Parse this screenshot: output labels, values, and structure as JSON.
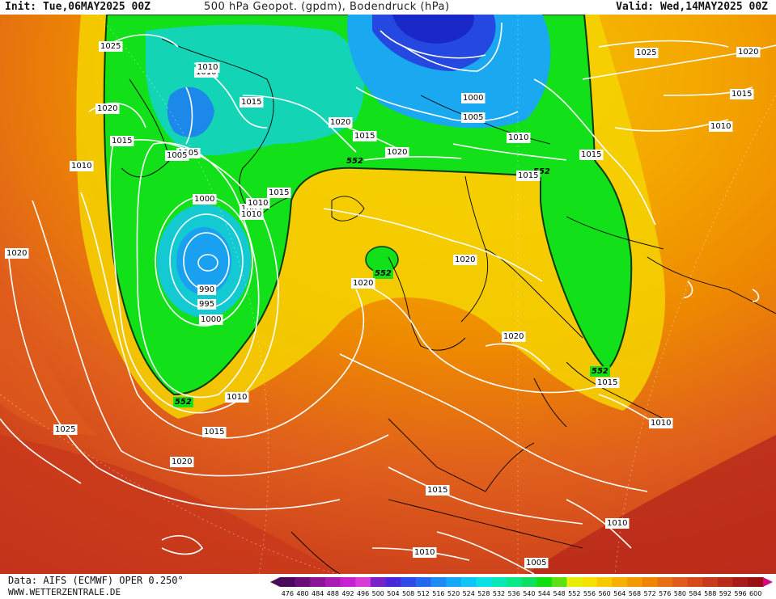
{
  "header": {
    "init": "Init: Tue,06MAY2025 00Z",
    "title": "500 hPa Geopot. (gpdm), Bodendruck (hPa)",
    "valid": "Valid: Wed,14MAY2025 00Z"
  },
  "footer": {
    "source": "Data: AIFS (ECMWF) OPER 0.250°",
    "website": "WWW.WETTERZENTRALE.DE"
  },
  "colorbar": {
    "values": [
      "476",
      "480",
      "484",
      "488",
      "492",
      "496",
      "500",
      "504",
      "508",
      "512",
      "516",
      "520",
      "524",
      "528",
      "532",
      "536",
      "540",
      "544",
      "548",
      "552",
      "556",
      "560",
      "564",
      "568",
      "572",
      "576",
      "580",
      "584",
      "588",
      "592",
      "596",
      "600"
    ],
    "colors": [
      "#4b0a5a",
      "#6a0f78",
      "#8a1596",
      "#a81cb4",
      "#c622cf",
      "#d83cd8",
      "#7a22c8",
      "#4a28d8",
      "#2f48e8",
      "#2468f0",
      "#1e8af4",
      "#16a8f6",
      "#10c6f6",
      "#0cdfe6",
      "#0ae8b8",
      "#0ae888",
      "#0de060",
      "#10e010",
      "#5ee014",
      "#e8ee08",
      "#f8e000",
      "#f8c800",
      "#f6b000",
      "#f29a00",
      "#ee8400",
      "#e87014",
      "#e05c1c",
      "#d64a1c",
      "#c83a1c",
      "#b82a1a",
      "#a81c18",
      "#981214"
    ]
  },
  "pressure_labels": [
    "1025",
    "1020",
    "1015",
    "1010",
    "1005",
    "1000",
    "990",
    "995",
    "1020",
    "1015",
    "1010",
    "1005",
    "1000",
    "1005",
    "1010",
    "1015",
    "1020",
    "1025",
    "1020",
    "1015",
    "1010",
    "1020",
    "1015",
    "1010",
    "1005",
    "1010",
    "1015",
    "1020",
    "1025",
    "1020",
    "1015",
    "1010",
    "1010",
    "1020",
    "1015",
    "1010",
    "1005",
    "1010",
    "1015",
    "1020",
    "1015",
    "1010",
    "1020",
    "1020",
    "1010",
    "1000",
    "1005",
    "1020"
  ],
  "geopotential_labels": [
    "552",
    "552",
    "552",
    "552",
    "552"
  ]
}
